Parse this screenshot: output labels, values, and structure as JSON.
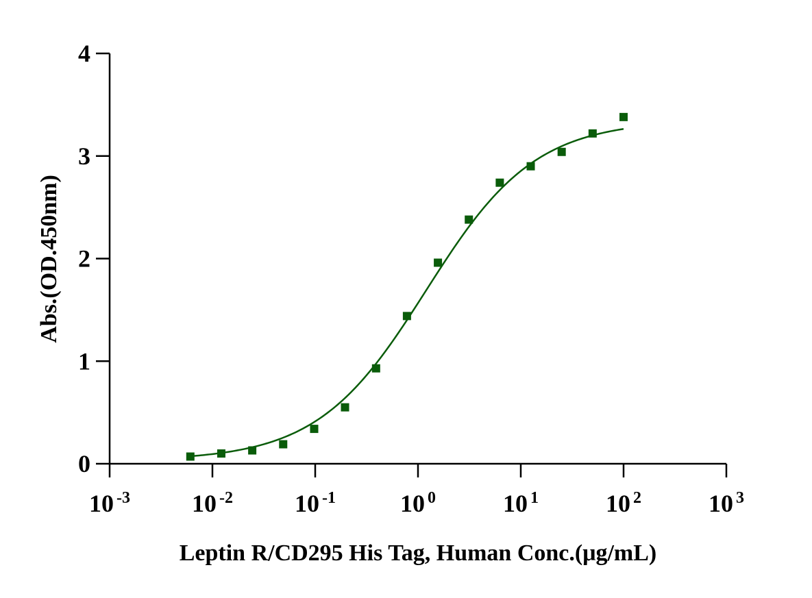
{
  "chart_data": {
    "type": "scatter",
    "title": "",
    "xlabel": "Leptin R/CD295 His Tag, Human Conc.(μg/mL)",
    "ylabel": "Abs.(OD.450nm)",
    "xscale": "log",
    "xlim": [
      0.001,
      1000
    ],
    "ylim": [
      0,
      4
    ],
    "grid": false,
    "legend": "none",
    "x_ticks": [
      {
        "value": 0.001,
        "base": "10",
        "exp": "-3"
      },
      {
        "value": 0.01,
        "base": "10",
        "exp": "-2"
      },
      {
        "value": 0.1,
        "base": "10",
        "exp": "-1"
      },
      {
        "value": 1,
        "base": "10",
        "exp": "0"
      },
      {
        "value": 10,
        "base": "10",
        "exp": "1"
      },
      {
        "value": 100,
        "base": "10",
        "exp": "2"
      },
      {
        "value": 1000,
        "base": "10",
        "exp": "3"
      }
    ],
    "y_ticks": [
      0,
      1,
      2,
      3,
      4
    ],
    "series": [
      {
        "color": "#0a5c0a",
        "marker": "square",
        "x": [
          0.0061,
          0.0122,
          0.0244,
          0.0488,
          0.0977,
          0.195,
          0.391,
          0.781,
          1.5625,
          3.125,
          6.25,
          12.5,
          25,
          50,
          100
        ],
        "y": [
          0.07,
          0.1,
          0.13,
          0.19,
          0.34,
          0.55,
          0.93,
          1.44,
          1.96,
          2.38,
          2.74,
          2.9,
          3.04,
          3.22,
          3.38
        ]
      }
    ],
    "fit": {
      "type": "4PL",
      "color": "#0a5c0a",
      "bottom": 0.03,
      "top": 3.35,
      "ec50": 1.2,
      "hill": 0.82,
      "x_range": [
        0.0061,
        100
      ]
    }
  }
}
